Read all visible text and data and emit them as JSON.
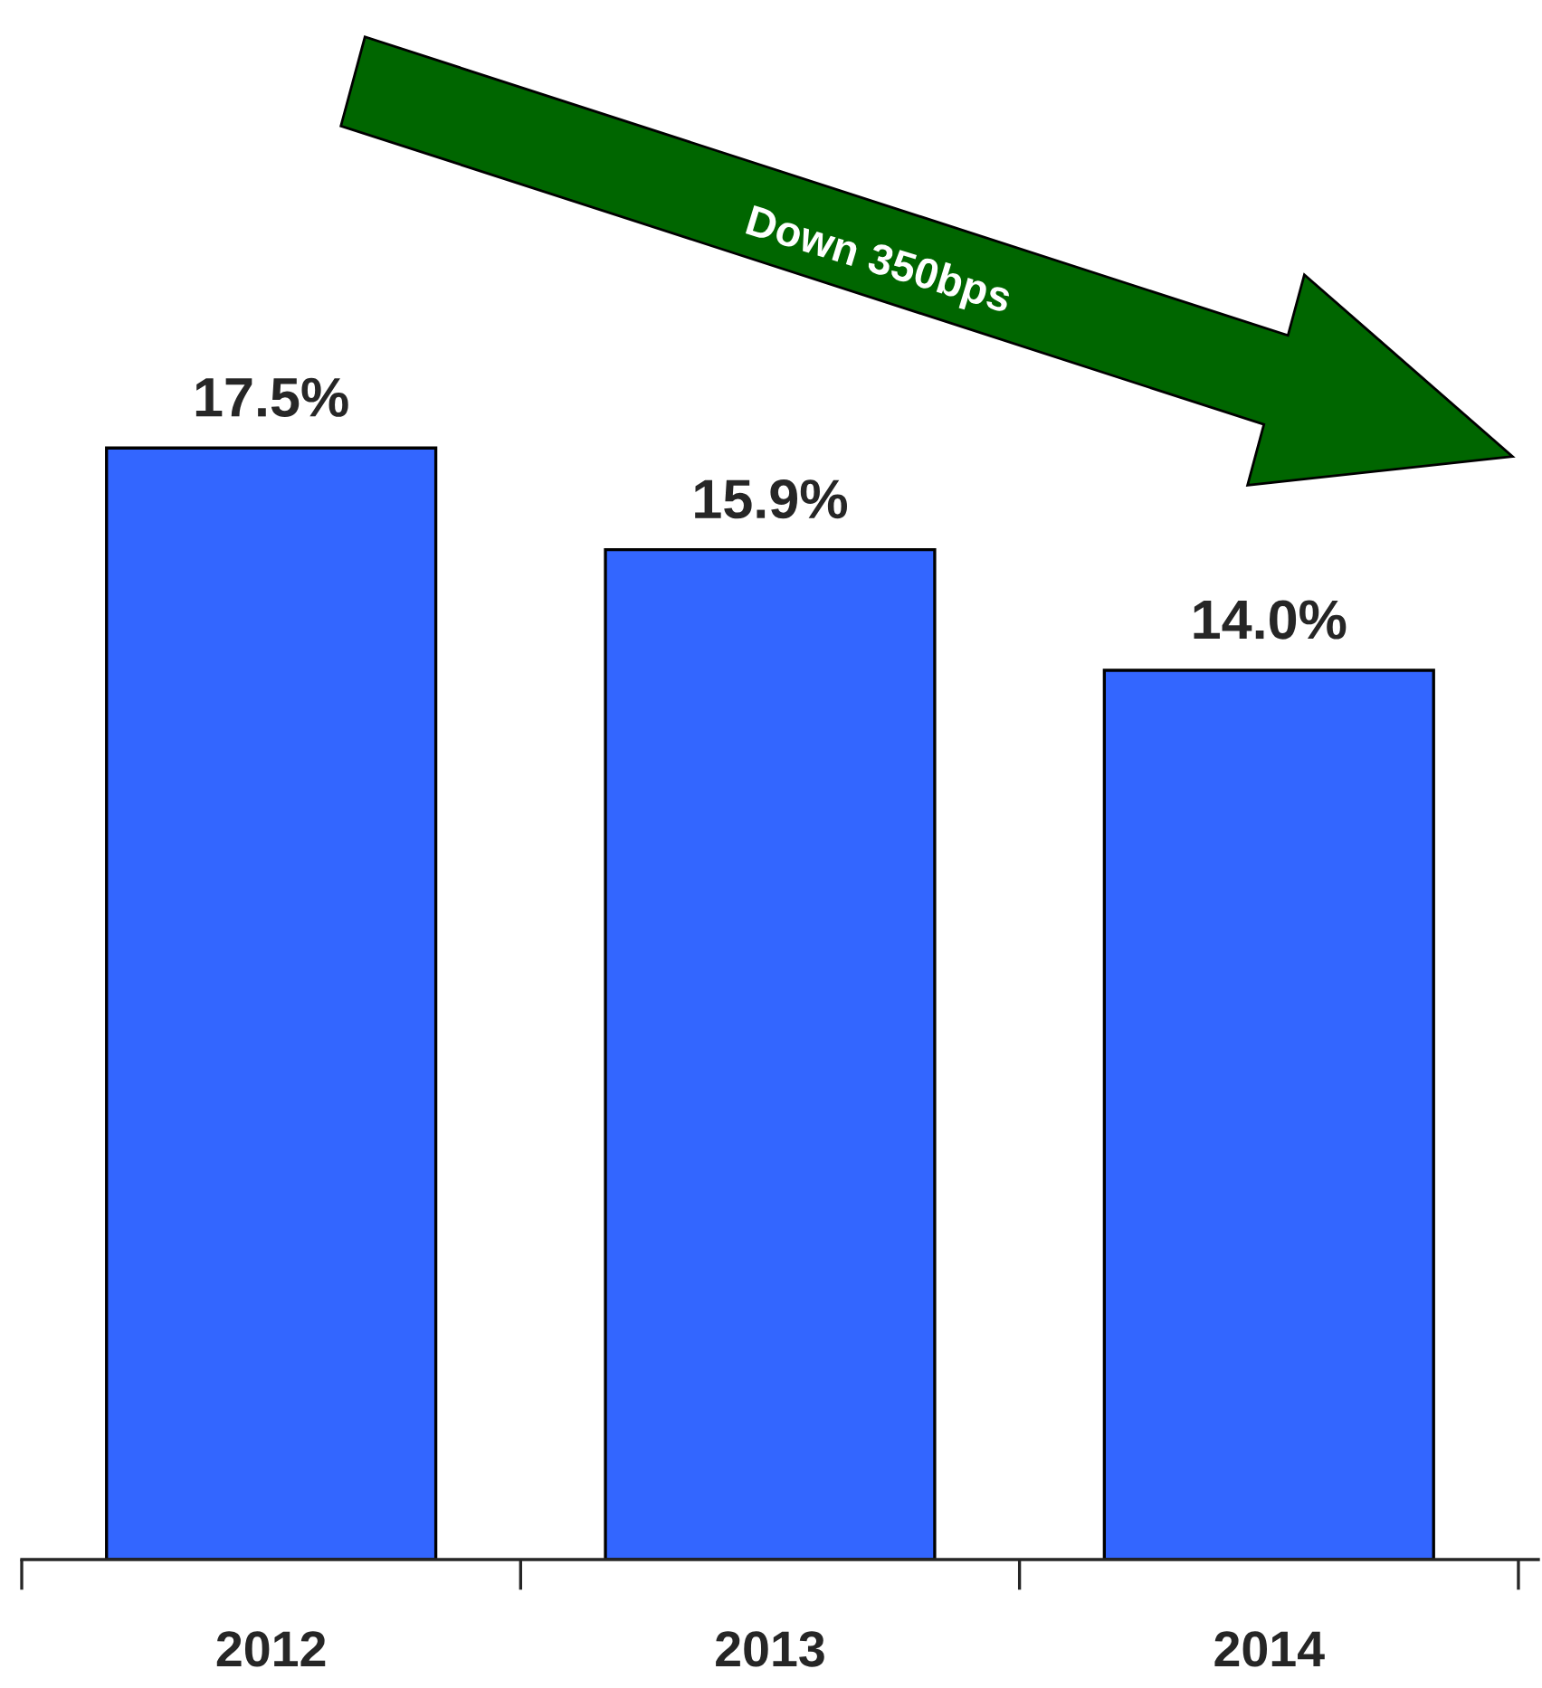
{
  "chart_data": {
    "type": "bar",
    "categories": [
      "2012",
      "2013",
      "2014"
    ],
    "values": [
      17.5,
      15.9,
      14.0
    ],
    "value_labels": [
      "17.5%",
      "15.9%",
      "14.0%"
    ],
    "color": "#3366ff",
    "tick_labels": "x",
    "grid": false,
    "legend": false,
    "annotations": [
      "Down 350bps"
    ]
  }
}
